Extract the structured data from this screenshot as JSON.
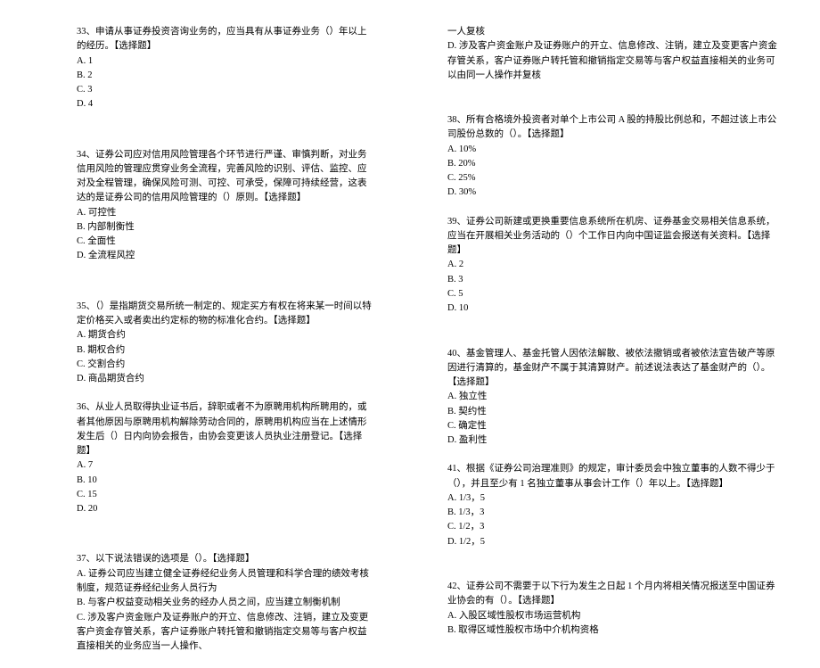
{
  "left": [
    {
      "gap": "q-sp",
      "stem": "33、申请从事证券投资咨询业务的，应当具有从事证券业务（）年以上的经历。【选择题】",
      "opts": [
        "A. 1",
        "B. 2",
        "C. 3",
        "D. 4"
      ]
    },
    {
      "gap": "q-sp",
      "stem": "34、证券公司应对信用风险管理各个环节进行严谨、审慎判断，对业务信用风险的管理应贯穿业务全流程，完善风险的识别、评估、监控、应对及全程管理，确保风险可测、可控、可承受，保障可持续经营，这表达的是证券公司的信用风险管理的（）原则。【选择题】",
      "opts": [
        "A. 可控性",
        "B. 内部制衡性",
        "C. 全面性",
        "D. 全流程风控"
      ]
    },
    {
      "gap": "q",
      "stem": "35、（）是指期货交易所统一制定的、规定买方有权在将来某一时间以特定价格买入或者卖出约定标的物的标准化合约。【选择题】",
      "opts": [
        "A. 期货合约",
        "B. 期权合约",
        "C. 交割合约",
        "D. 商品期货合约"
      ]
    },
    {
      "gap": "q-sp",
      "stem": "36、从业人员取得执业证书后，辞职或者不为原聘用机构所聘用的，或者其他原因与原聘用机构解除劳动合同的，原聘用机构应当在上述情形发生后（）日内向协会报告，由协会变更该人员执业注册登记。【选择题】",
      "opts": [
        "A. 7",
        "B. 10",
        "C. 15",
        "D. 20"
      ]
    },
    {
      "gap": "q",
      "stem": "37、以下说法错误的选项是（）。【选择题】",
      "opts": [
        "A. 证券公司应当建立健全证券经纪业务人员管理和科学合理的绩效考核制度，规范证券经纪业务人员行为",
        "B. 与客户权益变动相关业务的经办人员之间，应当建立制衡机制",
        "C. 涉及客户资金账户及证券账户的开立、信息修改、注销，建立及变更客户资金存管关系，客户证券账户转托管和撤销指定交易等与客户权益直接相关的业务应当一人操作、"
      ]
    }
  ],
  "right": [
    {
      "gap": "q-sp2",
      "stem": "一人复核",
      "opts": [
        "D. 涉及客户资金账户及证券账户的开立、信息修改、注销，建立及变更客户资金存管关系，客户证券账户转托管和撤销指定交易等与客户权益直接相关的业务可以由同一人操作并复核"
      ]
    },
    {
      "gap": "q",
      "stem": "38、所有合格境外投资者对单个上市公司 A 股的持股比例总和，不超过该上市公司股份总数的（）。【选择题】",
      "opts": [
        "A. 10%",
        "B. 20%",
        "C. 25%",
        "D. 30%"
      ]
    },
    {
      "gap": "q-sp2",
      "stem": "39、证券公司新建或更换重要信息系统所在机房、证券基金交易相关信息系统，应当在开展相关业务活动的（）个工作日内向中国证监会报送有关资料。【选择题】",
      "opts": [
        "A. 2",
        "B. 3",
        "C. 5",
        "D. 10"
      ]
    },
    {
      "gap": "q",
      "stem": "40、基金管理人、基金托管人因依法解散、被依法撤销或者被依法宣告破产等原因进行清算的，基金财产不属于其清算财产。前述说法表达了基金财产的（）。【选择题】",
      "opts": [
        "A. 独立性",
        "B. 契约性",
        "C. 确定性",
        "D. 盈利性"
      ]
    },
    {
      "gap": "q-sp2",
      "stem": "41、根据《证券公司治理准则》的规定，审计委员会中独立董事的人数不得少于（），并且至少有 1 名独立董事从事会计工作（）年以上。【选择题】",
      "opts": [
        "A. 1/3，5",
        "B. 1/3，3",
        "C. 1/2，3",
        "D. 1/2，5"
      ]
    },
    {
      "gap": "q",
      "stem": "42、证券公司不需要于以下行为发生之日起 1 个月内将相关情况报送至中国证券业协会的有（）。【选择题】",
      "opts": [
        "A. 入股区域性股权市场运营机构",
        "B. 取得区域性股权市场中介机构资格"
      ]
    }
  ]
}
